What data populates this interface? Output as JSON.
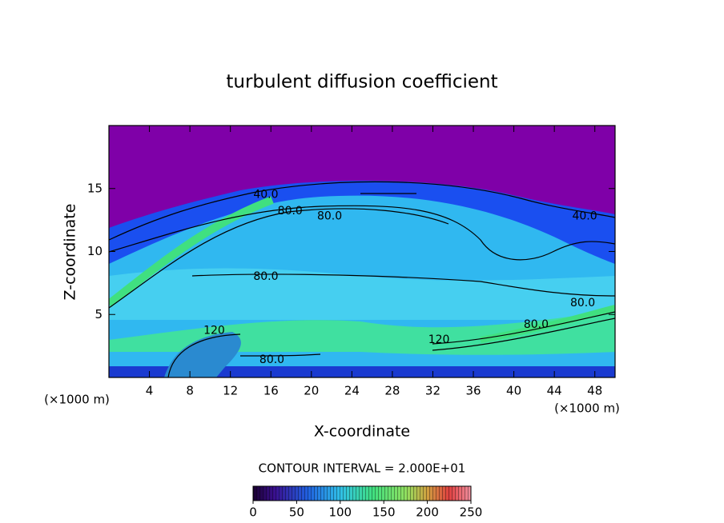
{
  "chart_data": {
    "type": "contour",
    "title": "turbulent diffusion coefficient",
    "xlabel": "X-coordinate",
    "ylabel": "Z-coordinate",
    "x_unit": "(×1000 m)",
    "y_unit": "(×1000 m)",
    "xlim": [
      0,
      50
    ],
    "ylim": [
      0,
      20
    ],
    "xticks": [
      4,
      8,
      12,
      16,
      20,
      24,
      28,
      32,
      36,
      40,
      44,
      48
    ],
    "yticks": [
      5,
      10,
      15
    ],
    "contour_interval": "CONTOUR INTERVAL = 2.000E+01",
    "contour_labels": [
      {
        "label": "40.0",
        "x": 15.5,
        "y": 14.5
      },
      {
        "label": "80.0",
        "x": 17.9,
        "y": 13.2
      },
      {
        "label": "80.0",
        "x": 21.8,
        "y": 12.8
      },
      {
        "label": "40.0",
        "x": 47,
        "y": 12.8
      },
      {
        "label": "80.0",
        "x": 15.5,
        "y": 8.0
      },
      {
        "label": "80.0",
        "x": 42.2,
        "y": 4.2
      },
      {
        "label": "80.0",
        "x": 46.8,
        "y": 5.9
      },
      {
        "label": "120",
        "x": 32.6,
        "y": 3.0
      },
      {
        "label": "120",
        "x": 10.4,
        "y": 3.7
      },
      {
        "label": "80.0",
        "x": 16.1,
        "y": 1.4
      }
    ],
    "colorbar": {
      "lim": [
        0,
        250
      ],
      "ticks": [
        0,
        50,
        100,
        150,
        200,
        250
      ]
    }
  }
}
